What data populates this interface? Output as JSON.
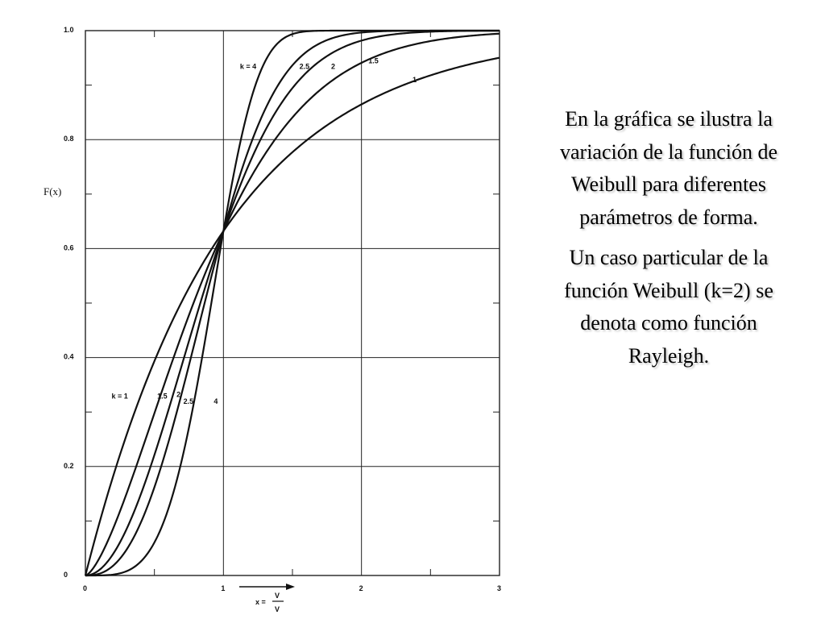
{
  "chart_data": {
    "type": "line",
    "xlabel_parts": {
      "lhs": "x =",
      "numerator": "V",
      "denominator": "V"
    },
    "ylabel": "F(x)",
    "xlim": [
      0,
      3
    ],
    "ylim": [
      0,
      1.0
    ],
    "xticks": [
      0,
      1,
      2,
      3
    ],
    "xtick_labels": [
      "0",
      "1",
      "2",
      "3"
    ],
    "yticks": [
      0,
      0.2,
      0.4,
      0.6,
      0.8,
      1.0
    ],
    "ytick_labels": [
      "0",
      "0.2",
      "0.4",
      "0.6",
      "0.8",
      "1.0"
    ],
    "grid": true,
    "series": [
      {
        "k": 1,
        "x": [
          0,
          0.1,
          0.2,
          0.3,
          0.4,
          0.5,
          0.6,
          0.7,
          0.8,
          0.9,
          1.0,
          1.2,
          1.4,
          1.6,
          1.8,
          2.0,
          2.2,
          2.4,
          2.6,
          2.8,
          3.0
        ],
        "y": [
          0,
          0.095,
          0.181,
          0.259,
          0.33,
          0.393,
          0.451,
          0.503,
          0.551,
          0.593,
          0.632,
          0.699,
          0.753,
          0.798,
          0.835,
          0.865,
          0.889,
          0.909,
          0.926,
          0.939,
          0.95
        ]
      },
      {
        "k": 1.5,
        "x": [
          0,
          0.1,
          0.2,
          0.3,
          0.4,
          0.5,
          0.6,
          0.7,
          0.8,
          0.9,
          1.0,
          1.2,
          1.4,
          1.6,
          1.8,
          2.0,
          2.2,
          2.4,
          2.6,
          2.8,
          3.0
        ],
        "y": [
          0,
          0.031,
          0.085,
          0.152,
          0.224,
          0.298,
          0.372,
          0.443,
          0.511,
          0.574,
          0.632,
          0.731,
          0.809,
          0.867,
          0.911,
          0.941,
          0.962,
          0.976,
          0.985,
          0.991,
          0.994
        ]
      },
      {
        "k": 2,
        "x": [
          0,
          0.1,
          0.2,
          0.3,
          0.4,
          0.5,
          0.6,
          0.7,
          0.8,
          0.9,
          1.0,
          1.2,
          1.4,
          1.6,
          1.8,
          2.0,
          2.2,
          2.4,
          2.6,
          2.8,
          3.0
        ],
        "y": [
          0,
          0.01,
          0.039,
          0.086,
          0.148,
          0.221,
          0.302,
          0.387,
          0.473,
          0.555,
          0.632,
          0.763,
          0.859,
          0.923,
          0.961,
          0.982,
          0.992,
          0.997,
          0.999,
          1.0,
          1.0
        ]
      },
      {
        "k": 2.5,
        "x": [
          0,
          0.1,
          0.2,
          0.3,
          0.4,
          0.5,
          0.6,
          0.7,
          0.8,
          0.9,
          1.0,
          1.2,
          1.4,
          1.6,
          1.8,
          2.0,
          2.2,
          2.4,
          2.6,
          2.8,
          3.0
        ],
        "y": [
          0,
          0.003,
          0.018,
          0.048,
          0.096,
          0.162,
          0.243,
          0.336,
          0.436,
          0.536,
          0.632,
          0.793,
          0.902,
          0.961,
          0.987,
          0.996,
          0.999,
          1.0,
          1.0,
          1.0,
          1.0
        ]
      },
      {
        "k": 4,
        "x": [
          0,
          0.1,
          0.2,
          0.3,
          0.4,
          0.5,
          0.6,
          0.7,
          0.8,
          0.9,
          1.0,
          1.2,
          1.4,
          1.6,
          1.8,
          2.0,
          2.2,
          2.4,
          2.6,
          2.8,
          3.0
        ],
        "y": [
          0,
          0.0,
          0.002,
          0.008,
          0.025,
          0.061,
          0.122,
          0.213,
          0.336,
          0.48,
          0.632,
          0.874,
          0.978,
          0.999,
          1.0,
          1.0,
          1.0,
          1.0,
          1.0,
          1.0,
          1.0
        ]
      }
    ],
    "curve_labels_upper": [
      {
        "text": "k = 4",
        "k": 4
      },
      {
        "text": "2.5",
        "k": 2.5
      },
      {
        "text": "2",
        "k": 2
      },
      {
        "text": "1.5",
        "k": 1.5
      },
      {
        "text": "1",
        "k": 1
      }
    ],
    "curve_labels_lower": [
      {
        "text": "k = 1",
        "k": 1
      },
      {
        "text": "1.5",
        "k": 1.5
      },
      {
        "text": "2",
        "k": 2
      },
      {
        "text": "2.5",
        "k": 2.5
      },
      {
        "text": "4",
        "k": 4
      }
    ]
  },
  "side_text": {
    "paragraph_1": "En la gráfica se ilustra la variación de la función de Weibull para diferentes parámetros de forma.",
    "paragraph_2": "Un caso particular de la función Weibull (k=2) se denota como función Rayleigh."
  },
  "colors": {
    "curve": "#111111",
    "grid": "#222222",
    "text": "#000000"
  }
}
